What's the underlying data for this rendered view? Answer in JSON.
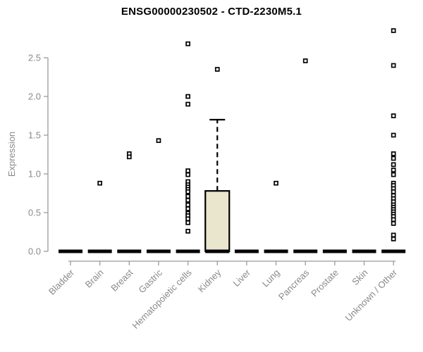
{
  "title": "ENSG00000230502 - CTD-2230M5.1",
  "colors": {
    "box_fill": "#EAE5CD",
    "box_border": "#000000",
    "outlier_fill": "#ffffff",
    "outlier_border": "#000000",
    "axis": "#9a9a9a",
    "tick_label": "#8a8a8a",
    "title": "#000000"
  },
  "chart_data": {
    "type": "boxplot",
    "title": "ENSG00000230502 - CTD-2230M5.1",
    "xlabel": "",
    "ylabel": "Expression",
    "ylim": [
      0,
      2.9
    ],
    "yticks": [
      0.0,
      0.5,
      1.0,
      1.5,
      2.0,
      2.5
    ],
    "grid": "off",
    "legend": "none",
    "categories": [
      "Bladder",
      "Brain",
      "Breast",
      "Gastric",
      "Hematopoietic cells",
      "Kidney",
      "Liver",
      "Lung",
      "Pancreas",
      "Prostate",
      "Skin",
      "Unknown / Other"
    ],
    "boxes": [
      {
        "category": "Bladder",
        "q1": 0,
        "median": 0,
        "q3": 0,
        "whisker_low": 0,
        "whisker_high": 0,
        "outliers": []
      },
      {
        "category": "Brain",
        "q1": 0,
        "median": 0,
        "q3": 0,
        "whisker_low": 0,
        "whisker_high": 0,
        "outliers": [
          0.88
        ]
      },
      {
        "category": "Breast",
        "q1": 0,
        "median": 0,
        "q3": 0,
        "whisker_low": 0,
        "whisker_high": 0,
        "outliers": [
          1.26,
          1.22
        ]
      },
      {
        "category": "Gastric",
        "q1": 0,
        "median": 0,
        "q3": 0,
        "whisker_low": 0,
        "whisker_high": 0,
        "outliers": [
          1.43
        ]
      },
      {
        "category": "Hematopoietic cells",
        "q1": 0,
        "median": 0,
        "q3": 0,
        "whisker_low": 0,
        "whisker_high": 0,
        "outliers": [
          2.68,
          2.0,
          1.9,
          1.04,
          0.99,
          0.9,
          0.86,
          0.83,
          0.8,
          0.77,
          0.71,
          0.66,
          0.6,
          0.55,
          0.49,
          0.46,
          0.42,
          0.37,
          0.26
        ]
      },
      {
        "category": "Kidney",
        "q1": 0,
        "median": 0,
        "q3": 0.78,
        "whisker_low": 0,
        "whisker_high": 1.7,
        "outliers": [
          2.35
        ]
      },
      {
        "category": "Liver",
        "q1": 0,
        "median": 0,
        "q3": 0,
        "whisker_low": 0,
        "whisker_high": 0,
        "outliers": []
      },
      {
        "category": "Lung",
        "q1": 0,
        "median": 0,
        "q3": 0,
        "whisker_low": 0,
        "whisker_high": 0,
        "outliers": [
          0.88
        ]
      },
      {
        "category": "Pancreas",
        "q1": 0,
        "median": 0,
        "q3": 0,
        "whisker_low": 0,
        "whisker_high": 0,
        "outliers": [
          2.46
        ]
      },
      {
        "category": "Prostate",
        "q1": 0,
        "median": 0,
        "q3": 0,
        "whisker_low": 0,
        "whisker_high": 0,
        "outliers": []
      },
      {
        "category": "Skin",
        "q1": 0,
        "median": 0,
        "q3": 0,
        "whisker_low": 0,
        "whisker_high": 0,
        "outliers": []
      },
      {
        "category": "Unknown / Other",
        "q1": 0,
        "median": 0,
        "q3": 0,
        "whisker_low": 0,
        "whisker_high": 0,
        "outliers": [
          2.85,
          2.4,
          1.75,
          1.5,
          1.26,
          1.2,
          1.12,
          1.05,
          0.99,
          0.88,
          0.85,
          0.81,
          0.77,
          0.72,
          0.68,
          0.64,
          0.6,
          0.57,
          0.54,
          0.51,
          0.48,
          0.45,
          0.41,
          0.36,
          0.21,
          0.16
        ]
      }
    ]
  }
}
